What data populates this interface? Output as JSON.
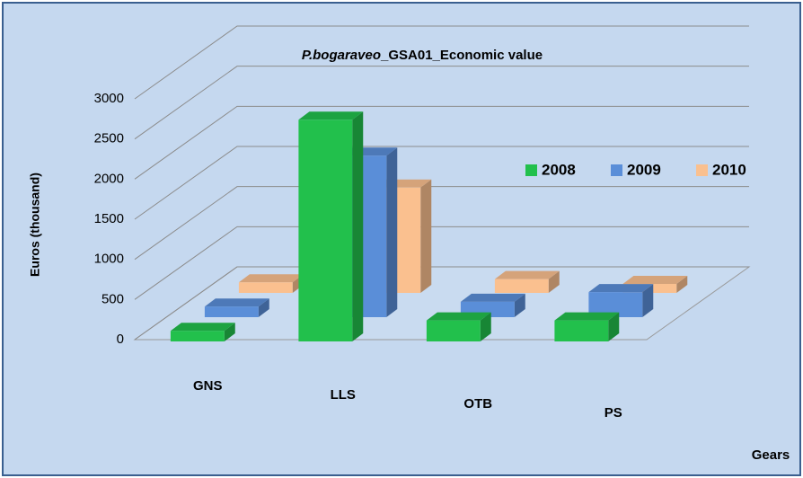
{
  "chart_data": {
    "type": "bar3d",
    "title_parts": [
      "P.bogaraveo",
      "_GSA01_Economic value"
    ],
    "ylabel": "Euros (thousand)",
    "xlabel": "Gears",
    "categories": [
      "GNS",
      "LLS",
      "OTB",
      "PS"
    ],
    "series": [
      {
        "name": "2008",
        "color": "#22c04c",
        "values": [
          20,
          2650,
          150,
          150
        ]
      },
      {
        "name": "2009",
        "color": "#5a8ed8",
        "values": [
          20,
          1900,
          80,
          200
        ]
      },
      {
        "name": "2010",
        "color": "#fac08f",
        "values": [
          20,
          1200,
          60,
          0
        ]
      }
    ],
    "ylim": [
      0,
      3000
    ],
    "yticks": [
      0,
      500,
      1000,
      1500,
      2000,
      2500,
      3000
    ],
    "grid": true
  }
}
